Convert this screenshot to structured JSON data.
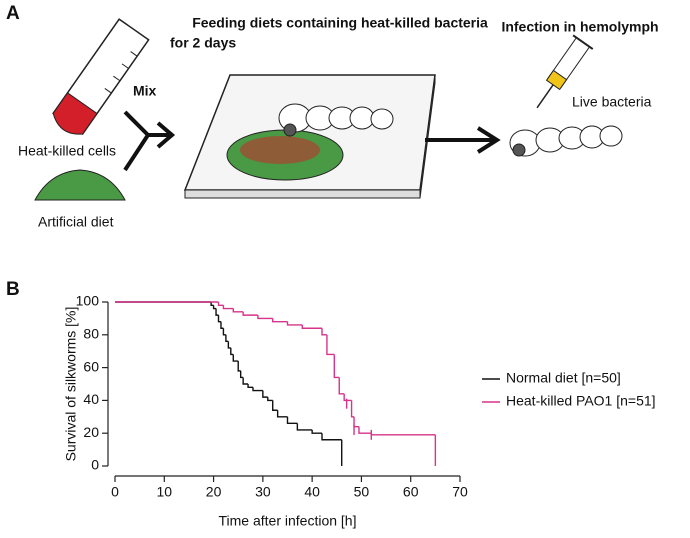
{
  "panel_a": {
    "label": "A",
    "feeding_title": "Feeding diets containing heat-killed bacteria",
    "feeding_subtitle": "for 2 days",
    "infection_title": "Infection in hemolymph",
    "mix": "Mix",
    "cells": "Heat-killed cells",
    "diet": "Artificial diet",
    "live": "Live bacteria"
  },
  "panel_b": {
    "label": "B"
  },
  "chart_data": {
    "type": "step",
    "xlabel": "Time after infection [h]",
    "ylabel": "Survival of silkworms [%]",
    "xlim": [
      0,
      70
    ],
    "xticks": [
      0,
      10,
      20,
      30,
      40,
      50,
      60,
      70
    ],
    "ylim": [
      0,
      100
    ],
    "yticks": [
      0,
      20,
      40,
      60,
      80,
      100
    ],
    "series": [
      {
        "name": "Normal diet [n=50]",
        "color": "#111111",
        "x": [
          0,
          19.5,
          20,
          20.5,
          21,
          21.5,
          22,
          22.5,
          23,
          23.5,
          24,
          25,
          25.5,
          26,
          27,
          28,
          30,
          31,
          32,
          33,
          35,
          37,
          40,
          42,
          46
        ],
        "values": [
          100,
          98,
          96,
          92,
          88,
          84,
          80,
          76,
          72,
          68,
          64,
          58,
          54,
          50,
          48,
          46,
          42,
          40,
          34,
          30,
          26,
          22,
          20,
          16,
          0
        ]
      },
      {
        "name": "Heat-killed PAO1 [n=51]",
        "color": "#d6338a",
        "x": [
          0,
          21,
          22,
          24,
          26,
          29,
          32,
          35,
          38,
          42,
          43,
          44.5,
          45.5,
          46.5,
          48,
          48.5,
          49.5,
          52,
          65
        ],
        "values": [
          100,
          98,
          96,
          94,
          92,
          90,
          88,
          86,
          84,
          80,
          68,
          54,
          44,
          40,
          30,
          24,
          20,
          19,
          0
        ],
        "censored_x": [
          47,
          48.5,
          52
        ],
        "censored_values": [
          38,
          22,
          19
        ]
      }
    ]
  }
}
